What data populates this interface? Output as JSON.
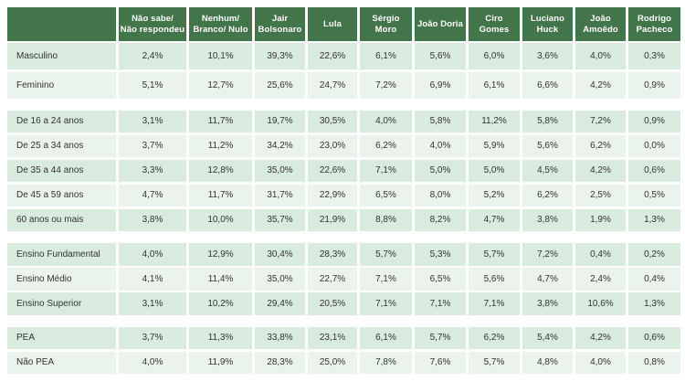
{
  "colors": {
    "header_bg": "#427549",
    "header_text": "#ffffff",
    "row_dark": "#d9ebde",
    "row_light": "#eaf4ed",
    "text": "#333333"
  },
  "table": {
    "columns": [
      "Não sabe/\nNão respondeu",
      "Nenhum/\nBranco/ Nulo",
      "Jair\nBolsonaro",
      "Lula",
      "Sérgio\nMoro",
      "João Doria",
      "Ciro\nGomes",
      "Luciano\nHuck",
      "João\nAmoêdo",
      "Rodrigo\nPacheco"
    ],
    "sections": [
      {
        "name": "sexo",
        "rows": [
          {
            "label": "Masculino",
            "values": [
              "2,4%",
              "10,1%",
              "39,3%",
              "22,6%",
              "6,1%",
              "5,6%",
              "6,0%",
              "3,6%",
              "4,0%",
              "0,3%"
            ]
          },
          {
            "label": "Feminino",
            "values": [
              "5,1%",
              "12,7%",
              "25,6%",
              "24,7%",
              "7,2%",
              "6,9%",
              "6,1%",
              "6,6%",
              "4,2%",
              "0,9%"
            ]
          }
        ]
      },
      {
        "name": "idade",
        "rows": [
          {
            "label": "De 16 a 24 anos",
            "values": [
              "3,1%",
              "11,7%",
              "19,7%",
              "30,5%",
              "4,0%",
              "5,8%",
              "11,2%",
              "5,8%",
              "7,2%",
              "0,9%"
            ]
          },
          {
            "label": "De 25 a 34 anos",
            "values": [
              "3,7%",
              "11,2%",
              "34,2%",
              "23,0%",
              "6,2%",
              "4,0%",
              "5,9%",
              "5,6%",
              "6,2%",
              "0,0%"
            ]
          },
          {
            "label": "De 35 a 44 anos",
            "values": [
              "3,3%",
              "12,8%",
              "35,0%",
              "22,6%",
              "7,1%",
              "5,0%",
              "5,0%",
              "4,5%",
              "4,2%",
              "0,6%"
            ]
          },
          {
            "label": "De 45 a 59 anos",
            "values": [
              "4,7%",
              "11,7%",
              "31,7%",
              "22,9%",
              "6,5%",
              "8,0%",
              "5,2%",
              "6,2%",
              "2,5%",
              "0,5%"
            ]
          },
          {
            "label": "60 anos ou mais",
            "values": [
              "3,8%",
              "10,0%",
              "35,7%",
              "21,9%",
              "8,8%",
              "8,2%",
              "4,7%",
              "3,8%",
              "1,9%",
              "1,3%"
            ]
          }
        ]
      },
      {
        "name": "escolaridade",
        "rows": [
          {
            "label": "Ensino Fundamental",
            "values": [
              "4,0%",
              "12,9%",
              "30,4%",
              "28,3%",
              "5,7%",
              "5,3%",
              "5,7%",
              "7,2%",
              "0,4%",
              "0,2%"
            ]
          },
          {
            "label": "Ensino Médio",
            "values": [
              "4,1%",
              "11,4%",
              "35,0%",
              "22,7%",
              "7,1%",
              "6,5%",
              "5,6%",
              "4,7%",
              "2,4%",
              "0,4%"
            ]
          },
          {
            "label": "Ensino Superior",
            "values": [
              "3,1%",
              "10,2%",
              "29,4%",
              "20,5%",
              "7,1%",
              "7,1%",
              "7,1%",
              "3,8%",
              "10,6%",
              "1,3%"
            ]
          }
        ]
      },
      {
        "name": "ocupacao",
        "rows": [
          {
            "label": "PEA",
            "values": [
              "3,7%",
              "11,3%",
              "33,8%",
              "23,1%",
              "6,1%",
              "5,7%",
              "6,2%",
              "5,4%",
              "4,2%",
              "0,6%"
            ]
          },
          {
            "label": "Não PEA",
            "values": [
              "4,0%",
              "11,9%",
              "28,3%",
              "25,0%",
              "7,8%",
              "7,6%",
              "5,7%",
              "4,8%",
              "4,0%",
              "0,8%"
            ]
          }
        ]
      }
    ]
  }
}
